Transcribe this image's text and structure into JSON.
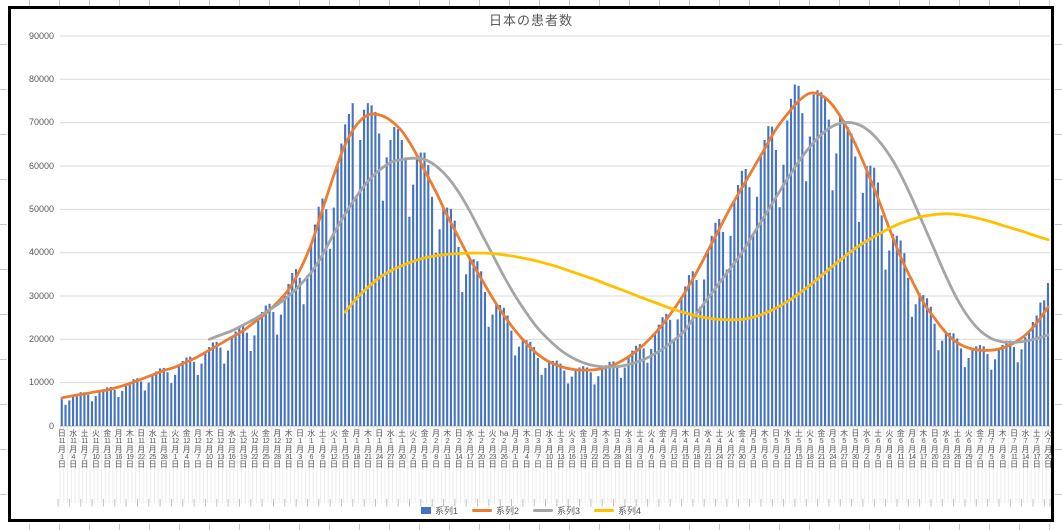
{
  "chart_data": {
    "type": "combo-bar-line",
    "title": "日本の患者数",
    "ylim": [
      0,
      90000
    ],
    "y_ticks": [
      0,
      10000,
      20000,
      30000,
      40000,
      50000,
      60000,
      70000,
      80000,
      90000
    ],
    "grid": true,
    "legend_position": "bottom",
    "x_tick_interval_days": 3,
    "x_ticks": [
      [
        "日",
        "11",
        "1"
      ],
      [
        "水",
        "11",
        "4"
      ],
      [
        "土",
        "11",
        "7"
      ],
      [
        "火",
        "11",
        "10"
      ],
      [
        "金",
        "11",
        "13"
      ],
      [
        "月",
        "11",
        "16"
      ],
      [
        "木",
        "11",
        "19"
      ],
      [
        "日",
        "11",
        "22"
      ],
      [
        "水",
        "11",
        "25"
      ],
      [
        "土",
        "11",
        "28"
      ],
      [
        "火",
        "12",
        "1"
      ],
      [
        "金",
        "12",
        "4"
      ],
      [
        "月",
        "12",
        "7"
      ],
      [
        "木",
        "12",
        "10"
      ],
      [
        "日",
        "12",
        "13"
      ],
      [
        "水",
        "12",
        "16"
      ],
      [
        "土",
        "12",
        "19"
      ],
      [
        "火",
        "12",
        "22"
      ],
      [
        "金",
        "12",
        "25"
      ],
      [
        "月",
        "12",
        "28"
      ],
      [
        "木",
        "12",
        "31"
      ],
      [
        "日",
        "1",
        "3"
      ],
      [
        "水",
        "1",
        "6"
      ],
      [
        "土",
        "1",
        "9"
      ],
      [
        "火",
        "1",
        "12"
      ],
      [
        "金",
        "1",
        "15"
      ],
      [
        "月",
        "1",
        "18"
      ],
      [
        "木",
        "1",
        "21"
      ],
      [
        "日",
        "1",
        "24"
      ],
      [
        "水",
        "1",
        "27"
      ],
      [
        "土",
        "1",
        "30"
      ],
      [
        "火",
        "2",
        "2"
      ],
      [
        "金",
        "2",
        "5"
      ],
      [
        "月",
        "2",
        "8"
      ],
      [
        "木",
        "2",
        "11"
      ],
      [
        "日",
        "2",
        "14"
      ],
      [
        "水",
        "2",
        "17"
      ],
      [
        "土",
        "2",
        "20"
      ],
      [
        "火",
        "2",
        "23"
      ],
      [
        "ha",
        "2",
        "26"
      ],
      [
        "月",
        "3",
        "1"
      ],
      [
        "木",
        "3",
        "4"
      ],
      [
        "日",
        "3",
        "7"
      ],
      [
        "水",
        "3",
        "10"
      ],
      [
        "土",
        "3",
        "13"
      ],
      [
        "火",
        "3",
        "16"
      ],
      [
        "金",
        "3",
        "19"
      ],
      [
        "月",
        "3",
        "22"
      ],
      [
        "木",
        "3",
        "25"
      ],
      [
        "日",
        "3",
        "28"
      ],
      [
        "水",
        "3",
        "31"
      ],
      [
        "土",
        "4",
        "3"
      ],
      [
        "火",
        "4",
        "6"
      ],
      [
        "金",
        "4",
        "9"
      ],
      [
        "月",
        "4",
        "12"
      ],
      [
        "木",
        "4",
        "15"
      ],
      [
        "日",
        "4",
        "18"
      ],
      [
        "水",
        "4",
        "21"
      ],
      [
        "土",
        "4",
        "24"
      ],
      [
        "火",
        "4",
        "27"
      ],
      [
        "金",
        "4",
        "30"
      ],
      [
        "月",
        "5",
        "3"
      ],
      [
        "木",
        "5",
        "6"
      ],
      [
        "日",
        "5",
        "9"
      ],
      [
        "水",
        "5",
        "12"
      ],
      [
        "土",
        "5",
        "15"
      ],
      [
        "火",
        "5",
        "18"
      ],
      [
        "金",
        "5",
        "21"
      ],
      [
        "月",
        "5",
        "24"
      ],
      [
        "木",
        "5",
        "27"
      ],
      [
        "日",
        "5",
        "30"
      ],
      [
        "水",
        "6",
        "2"
      ],
      [
        "土",
        "6",
        "5"
      ],
      [
        "火",
        "6",
        "8"
      ],
      [
        "金",
        "6",
        "11"
      ],
      [
        "月",
        "6",
        "14"
      ],
      [
        "木",
        "6",
        "17"
      ],
      [
        "日",
        "6",
        "20"
      ],
      [
        "水",
        "6",
        "23"
      ],
      [
        "土",
        "6",
        "26"
      ],
      [
        "火",
        "6",
        "29"
      ],
      [
        "金",
        "7",
        "2"
      ],
      [
        "月",
        "7",
        "5"
      ],
      [
        "木",
        "7",
        "8"
      ],
      [
        "日",
        "7",
        "11"
      ],
      [
        "水",
        "7",
        "14"
      ],
      [
        "土",
        "7",
        "17"
      ],
      [
        "火",
        "7",
        "20"
      ]
    ],
    "series": [
      {
        "name": "系列1",
        "type": "bar",
        "color": "#4472C4",
        "frequency": "daily",
        "start_label": "11月1日",
        "values": [
          6200,
          4900,
          5900,
          7000,
          7400,
          7800,
          7800,
          7200,
          5700,
          6900,
          8000,
          8500,
          8900,
          9000,
          8300,
          6700,
          8100,
          9500,
          10200,
          10800,
          11000,
          10300,
          8200,
          10000,
          11800,
          12600,
          13300,
          13400,
          12400,
          9900,
          11800,
          14000,
          15000,
          15800,
          16000,
          14800,
          11800,
          14400,
          17000,
          18200,
          19300,
          19400,
          18100,
          14400,
          17400,
          20500,
          21800,
          23000,
          23100,
          21500,
          17300,
          20900,
          24700,
          26300,
          27800,
          28200,
          26300,
          21100,
          25700,
          30500,
          32800,
          35300,
          36200,
          34200,
          28100,
          34800,
          42000,
          46500,
          50600,
          52500,
          50000,
          40900,
          50400,
          60300,
          65200,
          69600,
          72000,
          74500,
          53000,
          66000,
          73000,
          74500,
          74000,
          72500,
          67500,
          52000,
          62000,
          66000,
          69000,
          68500,
          66000,
          62000,
          48300,
          55700,
          62300,
          63100,
          63100,
          60200,
          52900,
          40000,
          45400,
          50300,
          50400,
          50100,
          47400,
          41300,
          30900,
          35000,
          38500,
          38500,
          38000,
          35700,
          30900,
          22900,
          25700,
          28200,
          27900,
          27300,
          25500,
          22000,
          16300,
          18300,
          20000,
          19800,
          19400,
          18200,
          15700,
          11800,
          13400,
          14800,
          15000,
          15100,
          14400,
          12800,
          9800,
          11400,
          13000,
          13500,
          13800,
          13500,
          12400,
          9600,
          11500,
          13300,
          14000,
          14800,
          14900,
          13800,
          11100,
          13500,
          16000,
          17400,
          18500,
          18900,
          17900,
          14600,
          17800,
          21500,
          23400,
          25100,
          25900,
          24500,
          20000,
          24600,
          29700,
          32200,
          34800,
          35700,
          33700,
          27500,
          33800,
          40500,
          43900,
          46900,
          47800,
          44800,
          36100,
          43900,
          52000,
          55600,
          58900,
          59300,
          55100,
          44000,
          52900,
          62200,
          66000,
          69200,
          69100,
          63700,
          50500,
          60300,
          70500,
          75500,
          78800,
          78500,
          72200,
          56500,
          66800,
          76500,
          77500,
          77000,
          76000,
          70700,
          54400,
          62900,
          71200,
          70500,
          69000,
          67500,
          62200,
          47100,
          53800,
          60000,
          60100,
          59600,
          56200,
          48600,
          36100,
          40500,
          44300,
          43900,
          42800,
          39900,
          34200,
          25200,
          28100,
          30700,
          30200,
          29500,
          27500,
          23600,
          17500,
          19700,
          21500,
          21500,
          21400,
          20200,
          17900,
          13600,
          15700,
          17800,
          18400,
          18700,
          18400,
          16600,
          13000,
          15400,
          17800,
          18700,
          19700,
          19700,
          18200,
          14700,
          17700,
          20500,
          22000,
          24000,
          25500,
          28500,
          29000,
          33000
        ]
      },
      {
        "name": "系列2",
        "type": "line",
        "color": "#ED7D31",
        "values_at_ticks": [
          6500,
          7000,
          7400,
          7900,
          8300,
          9000,
          9800,
          10800,
          11800,
          12800,
          13600,
          14800,
          16000,
          17500,
          19000,
          20500,
          22000,
          24000,
          26000,
          28500,
          31500,
          36000,
          42000,
          50000,
          58000,
          65000,
          69500,
          71800,
          71800,
          70500,
          68000,
          64000,
          59000,
          54000,
          48500,
          43500,
          38500,
          34000,
          29500,
          25500,
          22000,
          19000,
          16500,
          14800,
          13700,
          13100,
          12900,
          13000,
          13500,
          14500,
          16000,
          18000,
          20500,
          23500,
          27000,
          31000,
          35500,
          40500,
          45500,
          50500,
          55000,
          59500,
          64000,
          68500,
          72000,
          75000,
          76800,
          76300,
          74000,
          70000,
          65000,
          59000,
          52500,
          45500,
          39000,
          33500,
          28500,
          24800,
          21500,
          19200,
          18000,
          17500,
          17500,
          18000,
          19200,
          21000,
          23800,
          27500
        ]
      },
      {
        "name": "系列3",
        "type": "line",
        "color": "#A5A5A5",
        "values_at_ticks": [
          null,
          null,
          null,
          null,
          null,
          null,
          null,
          null,
          null,
          null,
          null,
          null,
          null,
          20000,
          21000,
          22000,
          23300,
          24700,
          26300,
          28000,
          30000,
          32500,
          35500,
          39500,
          44500,
          49000,
          53000,
          56500,
          59000,
          60800,
          61500,
          61800,
          61500,
          60000,
          57500,
          54000,
          49500,
          44500,
          39500,
          34500,
          30000,
          26000,
          22500,
          19800,
          17500,
          15800,
          14600,
          13900,
          13600,
          13700,
          14200,
          15000,
          16200,
          17800,
          19800,
          22200,
          26000,
          29500,
          33000,
          36500,
          40000,
          44300,
          48500,
          52800,
          57000,
          61000,
          64500,
          67300,
          69200,
          70000,
          69800,
          68500,
          66000,
          62500,
          58000,
          52500,
          46500,
          40500,
          34500,
          29200,
          25000,
          22000,
          20200,
          19400,
          19300,
          19600,
          20200,
          21000
        ]
      },
      {
        "name": "系列4",
        "type": "line",
        "color": "#FFC000",
        "values_at_ticks": [
          null,
          null,
          null,
          null,
          null,
          null,
          null,
          null,
          null,
          null,
          null,
          null,
          null,
          null,
          null,
          null,
          null,
          null,
          null,
          null,
          null,
          null,
          null,
          null,
          null,
          26300,
          29500,
          32000,
          34200,
          35800,
          37000,
          38000,
          38800,
          39300,
          39600,
          39800,
          39900,
          39900,
          39800,
          39500,
          39100,
          38600,
          38000,
          37300,
          36500,
          35600,
          34700,
          33800,
          32800,
          31800,
          30800,
          29800,
          28800,
          27800,
          26900,
          26100,
          25400,
          24900,
          24600,
          24500,
          24600,
          25100,
          26000,
          27200,
          28700,
          30500,
          32500,
          34700,
          36900,
          39000,
          41000,
          42700,
          44200,
          45600,
          46800,
          47700,
          48400,
          48800,
          49000,
          48800,
          48400,
          47800,
          47100,
          46300,
          45500,
          44700,
          43800,
          43000
        ]
      }
    ]
  }
}
